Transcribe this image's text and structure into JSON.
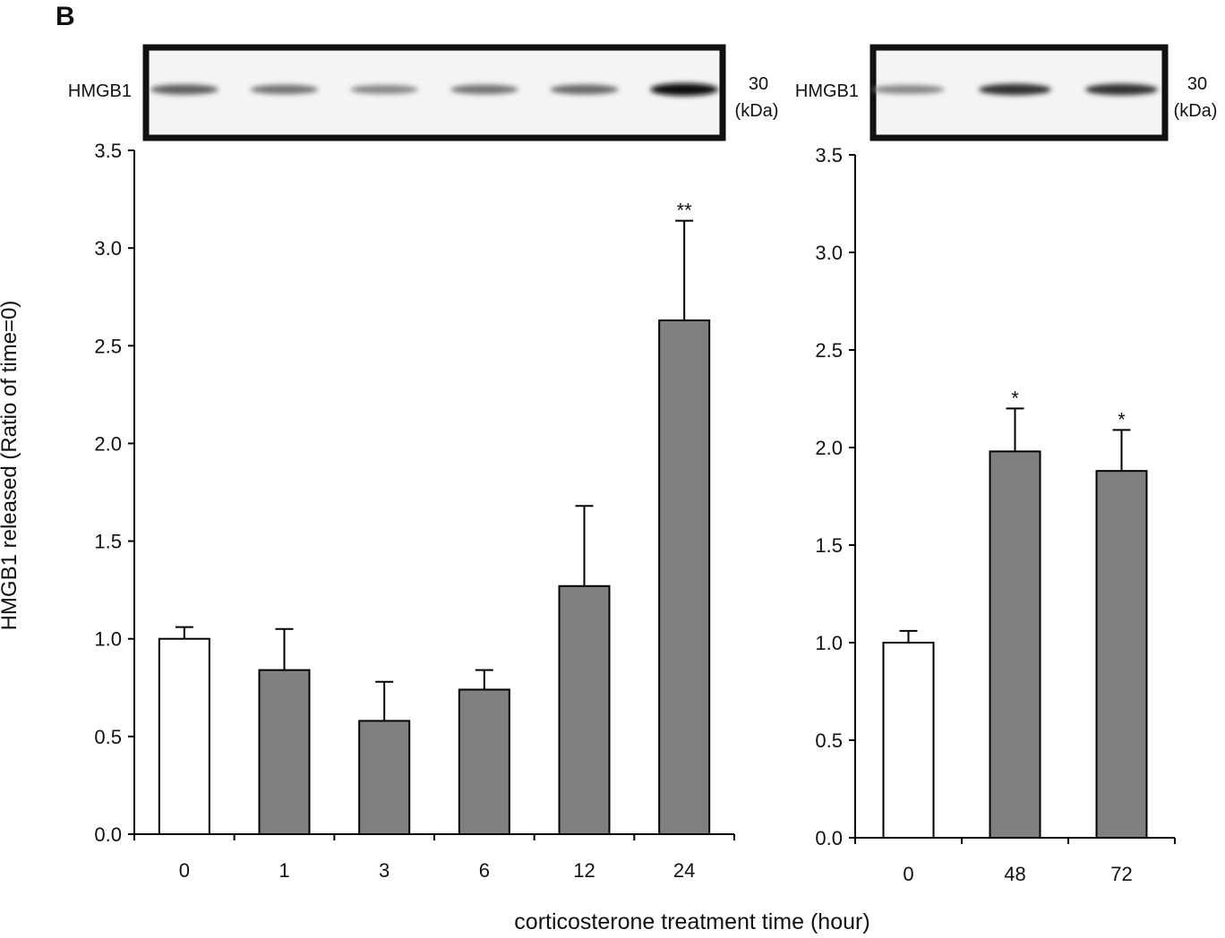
{
  "panel_label": "B",
  "blots": [
    {
      "label": "HMGB1",
      "marker": "30",
      "unit": "(kDa)",
      "band_intensity": [
        0.55,
        0.45,
        0.35,
        0.45,
        0.5,
        1.0
      ]
    },
    {
      "label": "HMGB1",
      "marker": "30",
      "unit": "(kDa)",
      "band_intensity": [
        0.35,
        0.8,
        0.8
      ]
    }
  ],
  "xlabel": "corticosterone treatment time (hour)",
  "ylabel": "HMGB1 released (Ratio of time=0)",
  "colors": {
    "control": "#ffffff",
    "treated": "#808080",
    "axis": "#000000"
  },
  "chart_data": [
    {
      "type": "bar",
      "categories": [
        "0",
        "1",
        "3",
        "6",
        "12",
        "24"
      ],
      "values": [
        1.0,
        0.84,
        0.58,
        0.74,
        1.27,
        2.63
      ],
      "error_upper": [
        1.06,
        1.05,
        0.78,
        0.84,
        1.68,
        3.14
      ],
      "annotations": [
        "",
        "",
        "",
        "",
        "",
        "**"
      ],
      "bar_colors": [
        "#ffffff",
        "#808080",
        "#808080",
        "#808080",
        "#808080",
        "#808080"
      ],
      "ylim": [
        0,
        3.5
      ],
      "yticks": [
        "0.0",
        "0.5",
        "1.0",
        "1.5",
        "2.0",
        "2.5",
        "3.0",
        "3.5"
      ],
      "grid": false
    },
    {
      "type": "bar",
      "categories": [
        "0",
        "48",
        "72"
      ],
      "values": [
        1.0,
        1.98,
        1.88
      ],
      "error_upper": [
        1.06,
        2.2,
        2.09
      ],
      "annotations": [
        "",
        "*",
        "*"
      ],
      "bar_colors": [
        "#ffffff",
        "#808080",
        "#808080"
      ],
      "ylim": [
        0,
        3.5
      ],
      "yticks": [
        "0.0",
        "0.5",
        "1.0",
        "1.5",
        "2.0",
        "2.5",
        "3.0",
        "3.5"
      ],
      "grid": false
    }
  ]
}
